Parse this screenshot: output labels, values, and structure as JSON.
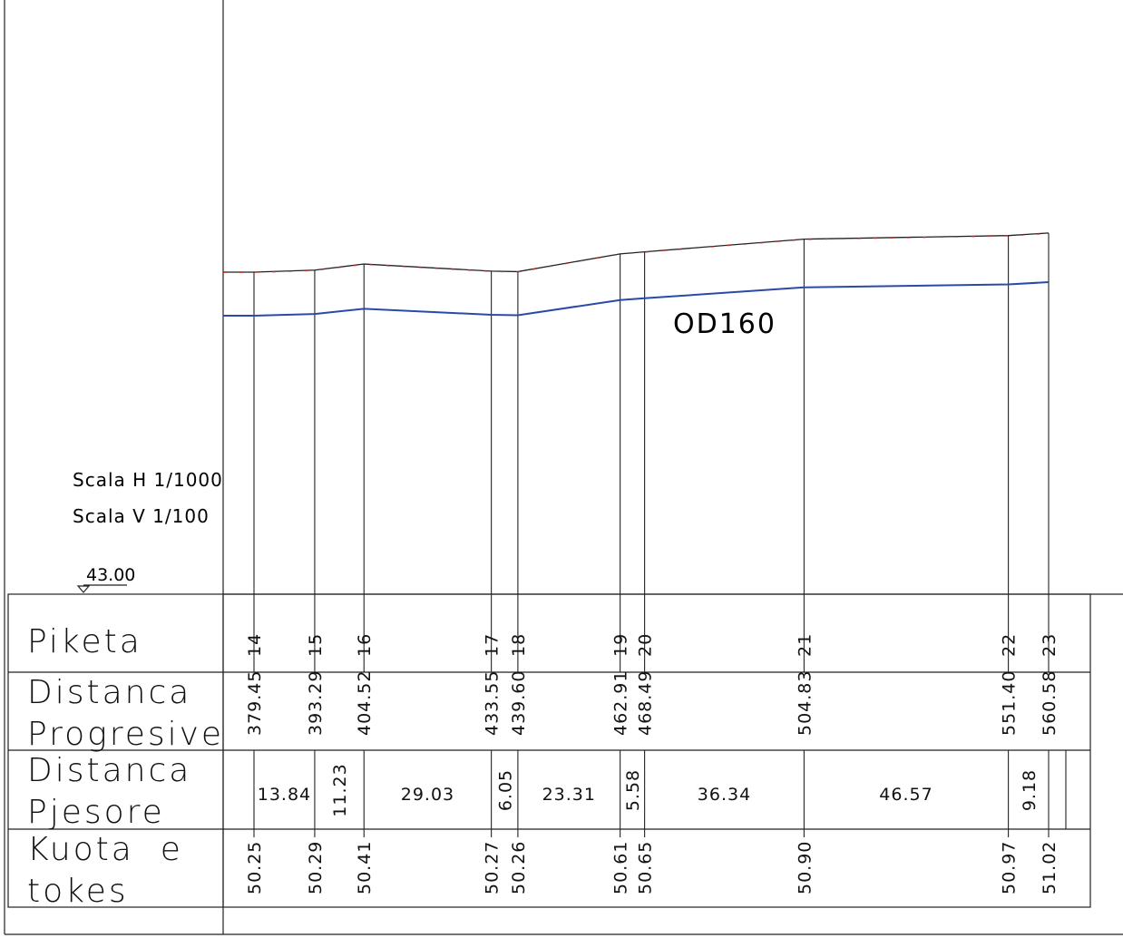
{
  "pipe_label": "OD160",
  "scale_h": "Scala H 1/1000",
  "scale_v": "Scala V 1/100",
  "datum": "43.00",
  "rows": {
    "piketa": "Piketa",
    "distanca_progresive": [
      "Distanca",
      "Progresive"
    ],
    "distanca_pjesore": [
      "Distanca",
      "Pjesore"
    ],
    "kuota_e_tokes": [
      "Kuota  e",
      "tokes"
    ]
  },
  "stations": [
    {
      "piketa": "14",
      "progresive": "379.45",
      "kuota": "50.25"
    },
    {
      "piketa": "15",
      "progresive": "393.29",
      "kuota": "50.29"
    },
    {
      "piketa": "16",
      "progresive": "404.52",
      "kuota": "50.41"
    },
    {
      "piketa": "17",
      "progresive": "433.55",
      "kuota": "50.27"
    },
    {
      "piketa": "18",
      "progresive": "439.60",
      "kuota": "50.26"
    },
    {
      "piketa": "19",
      "progresive": "462.91",
      "kuota": "50.61"
    },
    {
      "piketa": "20",
      "progresive": "468.49",
      "kuota": "50.65"
    },
    {
      "piketa": "21",
      "progresive": "504.83",
      "kuota": "50.90"
    },
    {
      "piketa": "22",
      "progresive": "551.40",
      "kuota": "50.97"
    },
    {
      "piketa": "23",
      "progresive": "560.58",
      "kuota": "51.02"
    }
  ],
  "segments": [
    "13.84",
    "11.23",
    "29.03",
    "6.05",
    "23.31",
    "5.58",
    "36.34",
    "46.57",
    "9.18"
  ],
  "colors": {
    "pipe": "#2a4aa8",
    "ground_marks": "#d23a3a",
    "lines": "#222222"
  }
}
